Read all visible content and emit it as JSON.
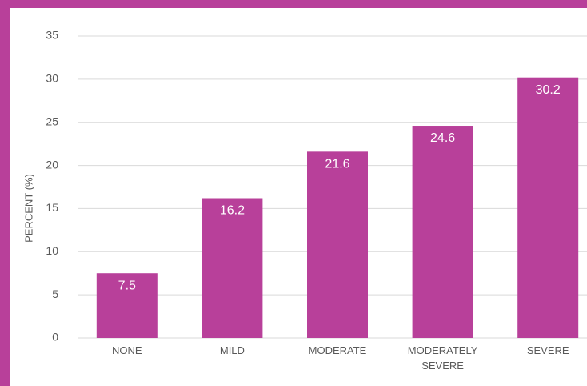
{
  "chart_data": {
    "type": "bar",
    "y_label": "PERCENT (%)",
    "categories": [
      "NONE",
      "MILD",
      "MODERATE",
      "MODERATELY SEVERE",
      "SEVERE"
    ],
    "values": [
      7.5,
      16.2,
      21.6,
      24.6,
      30.2
    ],
    "color": "#b8409a",
    "ylim": [
      0,
      35
    ],
    "yticks": [
      0,
      5,
      10,
      15,
      20,
      25,
      30,
      35
    ],
    "grid": true
  }
}
